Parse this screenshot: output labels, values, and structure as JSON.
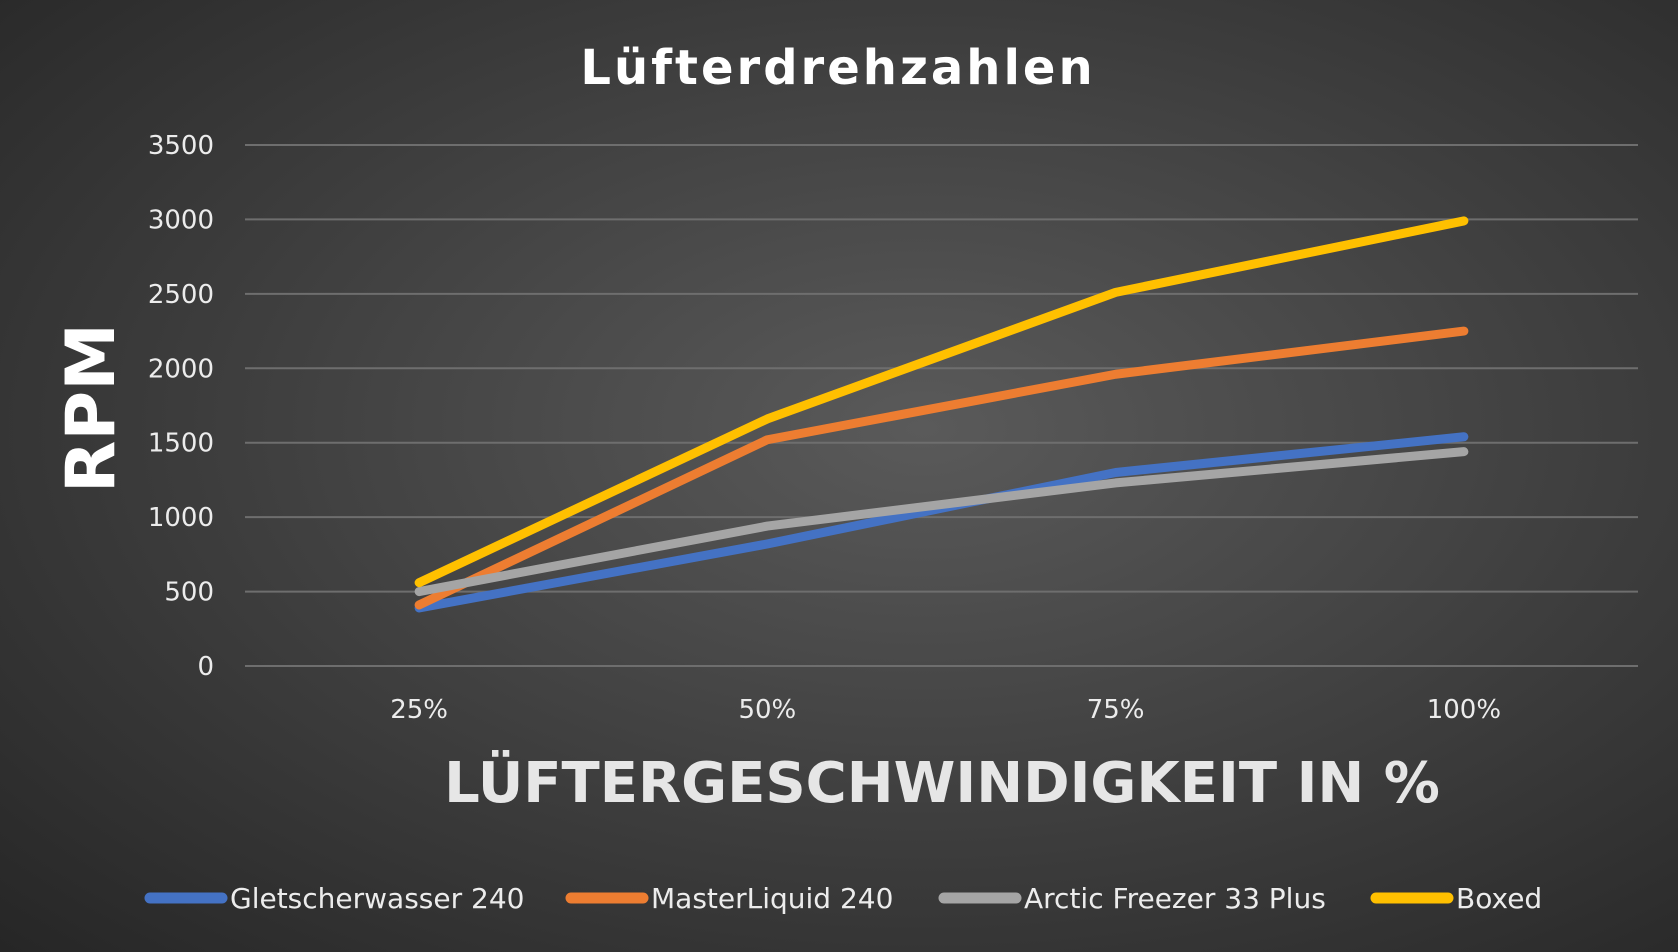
{
  "chart_data": {
    "type": "line",
    "title": "Lüfterdrehzahlen",
    "xlabel": "LÜFTERGESCHWINDIGKEIT IN %",
    "ylabel": "RPM",
    "categories": [
      "25%",
      "50%",
      "75%",
      "100%"
    ],
    "ylim": [
      0,
      3500
    ],
    "yticks": [
      0,
      500,
      1000,
      1500,
      2000,
      2500,
      3000,
      3500
    ],
    "grid": true,
    "legend_position": "bottom",
    "series": [
      {
        "name": "Gletscherwasser 240",
        "color": "#4472c4",
        "values": [
          390,
          820,
          1300,
          1540
        ]
      },
      {
        "name": "MasterLiquid 240",
        "color": "#ed7d31",
        "values": [
          410,
          1520,
          1960,
          2250
        ]
      },
      {
        "name": "Arctic Freezer 33 Plus",
        "color": "#a5a5a5",
        "values": [
          500,
          940,
          1230,
          1440
        ]
      },
      {
        "name": "Boxed",
        "color": "#ffc000",
        "values": [
          560,
          1660,
          2510,
          2990
        ]
      }
    ]
  }
}
